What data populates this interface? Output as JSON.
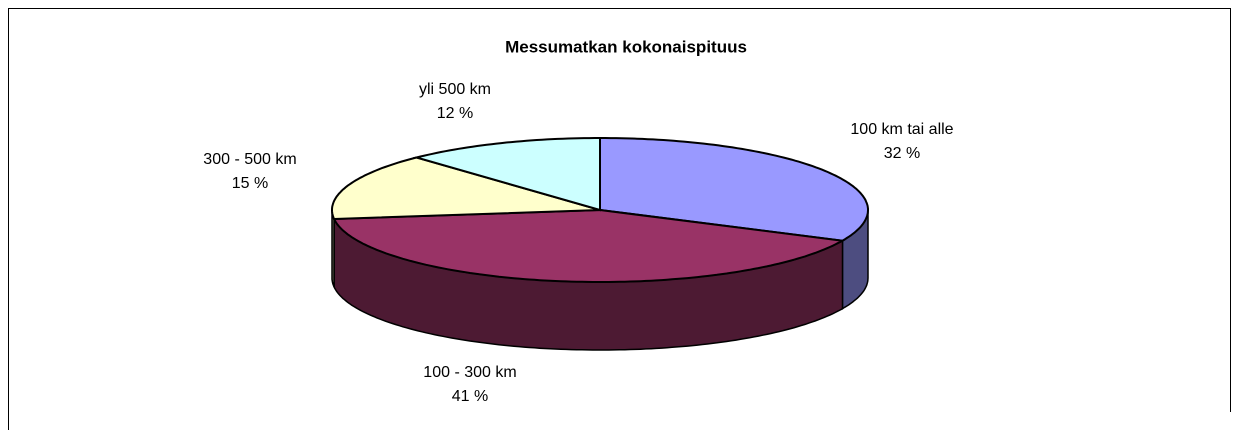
{
  "chart_data": {
    "type": "pie3d",
    "title": "Messumatkan kokonaispituus",
    "categories": [
      "100 km tai alle",
      "100 - 300 km",
      "300 - 500 km",
      "yli 500 km"
    ],
    "values": [
      32,
      41,
      15,
      12
    ],
    "value_labels": [
      "32 %",
      "41 %",
      "15 %",
      "12 %"
    ],
    "colors": [
      "#9999ff",
      "#993366",
      "#ffffcc",
      "#ccffff"
    ]
  }
}
